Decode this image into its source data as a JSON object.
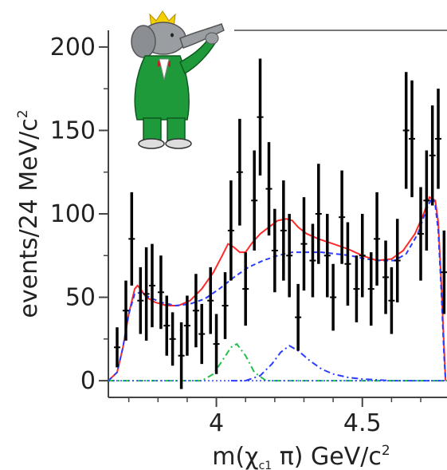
{
  "chart_data": {
    "type": "scatter",
    "title": "",
    "xlabel_parts": [
      "m(",
      "χ",
      "c1",
      " π) GeV/c",
      "2"
    ],
    "ylabel_parts": [
      "events/24 MeV/c",
      "2"
    ],
    "xlim": [
      3.63,
      4.79
    ],
    "ylim": [
      -10,
      210
    ],
    "x_ticks": [
      4,
      4.5
    ],
    "x_tick_labels": [
      "4",
      "4.5"
    ],
    "y_ticks": [
      0,
      50,
      100,
      150,
      200
    ],
    "y_tick_labels": [
      "0",
      "50",
      "100",
      "150",
      "200"
    ],
    "grid": false,
    "legend": "none",
    "series": [
      {
        "kind": "points_with_errors",
        "color": "#000000",
        "points": [
          {
            "x": 3.66,
            "y": 20,
            "err": 12
          },
          {
            "x": 3.69,
            "y": 42,
            "err": 18
          },
          {
            "x": 3.71,
            "y": 85,
            "err": 28
          },
          {
            "x": 3.74,
            "y": 48,
            "err": 20
          },
          {
            "x": 3.76,
            "y": 52,
            "err": 28
          },
          {
            "x": 3.78,
            "y": 57,
            "err": 25
          },
          {
            "x": 3.81,
            "y": 53,
            "err": 22
          },
          {
            "x": 3.83,
            "y": 33,
            "err": 18
          },
          {
            "x": 3.85,
            "y": 25,
            "err": 16
          },
          {
            "x": 3.88,
            "y": 15,
            "err": 20
          },
          {
            "x": 3.9,
            "y": 33,
            "err": 18
          },
          {
            "x": 3.93,
            "y": 42,
            "err": 22
          },
          {
            "x": 3.95,
            "y": 28,
            "err": 18
          },
          {
            "x": 3.98,
            "y": 48,
            "err": 20
          },
          {
            "x": 4.0,
            "y": 22,
            "err": 18
          },
          {
            "x": 4.03,
            "y": 45,
            "err": 20
          },
          {
            "x": 4.05,
            "y": 90,
            "err": 30
          },
          {
            "x": 4.08,
            "y": 125,
            "err": 32
          },
          {
            "x": 4.1,
            "y": 55,
            "err": 22
          },
          {
            "x": 4.13,
            "y": 108,
            "err": 30
          },
          {
            "x": 4.15,
            "y": 158,
            "err": 35
          },
          {
            "x": 4.18,
            "y": 115,
            "err": 28
          },
          {
            "x": 4.2,
            "y": 78,
            "err": 25
          },
          {
            "x": 4.23,
            "y": 90,
            "err": 30
          },
          {
            "x": 4.25,
            "y": 75,
            "err": 25
          },
          {
            "x": 4.28,
            "y": 38,
            "err": 20
          },
          {
            "x": 4.3,
            "y": 82,
            "err": 28
          },
          {
            "x": 4.33,
            "y": 72,
            "err": 22
          },
          {
            "x": 4.35,
            "y": 100,
            "err": 30
          },
          {
            "x": 4.38,
            "y": 75,
            "err": 25
          },
          {
            "x": 4.4,
            "y": 50,
            "err": 20
          },
          {
            "x": 4.43,
            "y": 98,
            "err": 28
          },
          {
            "x": 4.45,
            "y": 70,
            "err": 25
          },
          {
            "x": 4.48,
            "y": 55,
            "err": 20
          },
          {
            "x": 4.5,
            "y": 75,
            "err": 25
          },
          {
            "x": 4.53,
            "y": 55,
            "err": 22
          },
          {
            "x": 4.55,
            "y": 85,
            "err": 28
          },
          {
            "x": 4.58,
            "y": 62,
            "err": 22
          },
          {
            "x": 4.6,
            "y": 48,
            "err": 20
          },
          {
            "x": 4.62,
            "y": 72,
            "err": 25
          },
          {
            "x": 4.65,
            "y": 150,
            "err": 35
          },
          {
            "x": 4.67,
            "y": 145,
            "err": 35
          },
          {
            "x": 4.7,
            "y": 88,
            "err": 28
          },
          {
            "x": 4.72,
            "y": 108,
            "err": 30
          },
          {
            "x": 4.74,
            "y": 135,
            "err": 30
          },
          {
            "x": 4.76,
            "y": 145,
            "err": 30
          },
          {
            "x": 4.78,
            "y": 65,
            "err": 25
          }
        ]
      },
      {
        "kind": "curve",
        "color": "#ff2a2a",
        "dash": "",
        "x": [
          3.63,
          3.66,
          3.68,
          3.7,
          3.72,
          3.73,
          3.74,
          3.76,
          3.79,
          3.83,
          3.87,
          3.91,
          3.95,
          3.99,
          4.02,
          4.04,
          4.06,
          4.08,
          4.1,
          4.12,
          4.15,
          4.18,
          4.21,
          4.24,
          4.26,
          4.28,
          4.31,
          4.35,
          4.4,
          4.45,
          4.5,
          4.55,
          4.6,
          4.64,
          4.68,
          4.71,
          4.73,
          4.75,
          4.76,
          4.77,
          4.78,
          4.785
        ],
        "y": [
          0,
          5,
          20,
          40,
          55,
          57,
          55,
          50,
          47,
          45,
          45,
          48,
          55,
          65,
          75,
          82,
          80,
          77,
          77,
          82,
          88,
          92,
          96,
          97,
          96,
          92,
          88,
          85,
          82,
          79,
          75,
          72,
          73,
          78,
          88,
          100,
          110,
          108,
          95,
          60,
          20,
          0
        ]
      },
      {
        "kind": "curve",
        "color": "#2a3cff",
        "dash": "6 4",
        "x": [
          3.63,
          3.66,
          3.68,
          3.7,
          3.72,
          3.74,
          3.77,
          3.81,
          3.86,
          3.91,
          3.96,
          4.01,
          4.06,
          4.11,
          4.16,
          4.21,
          4.26,
          4.31,
          4.36,
          4.41,
          4.46,
          4.51,
          4.56,
          4.61,
          4.65,
          4.69,
          4.72,
          4.74,
          4.75,
          4.76,
          4.77,
          4.78,
          4.785
        ],
        "y": [
          0,
          5,
          20,
          40,
          52,
          53,
          50,
          47,
          45,
          46,
          49,
          55,
          62,
          68,
          72,
          75,
          77,
          77,
          77,
          76,
          75,
          73,
          72,
          72,
          76,
          88,
          103,
          110,
          105,
          90,
          55,
          15,
          0
        ]
      },
      {
        "kind": "curve",
        "color": "#2a3cff",
        "dash": "8 4 2 4",
        "x": [
          4.05,
          4.1,
          4.15,
          4.19,
          4.22,
          4.25,
          4.28,
          4.32,
          4.36,
          4.4,
          4.45,
          4.5,
          4.55,
          4.6,
          4.65,
          4.7,
          4.75,
          4.79
        ],
        "y": [
          0,
          0,
          3,
          10,
          17,
          21,
          18,
          12,
          7,
          4,
          2,
          1,
          0.5,
          0,
          0,
          0,
          0,
          0
        ]
      },
      {
        "kind": "curve",
        "color": "#22c04a",
        "dash": "8 4 2 4",
        "x": [
          3.63,
          3.95,
          3.99,
          4.02,
          4.05,
          4.07,
          4.1,
          4.13,
          4.17,
          4.25,
          4.4,
          4.79
        ],
        "y": [
          0,
          0,
          4,
          12,
          20,
          22,
          15,
          5,
          0,
          0,
          0,
          0
        ]
      }
    ]
  }
}
